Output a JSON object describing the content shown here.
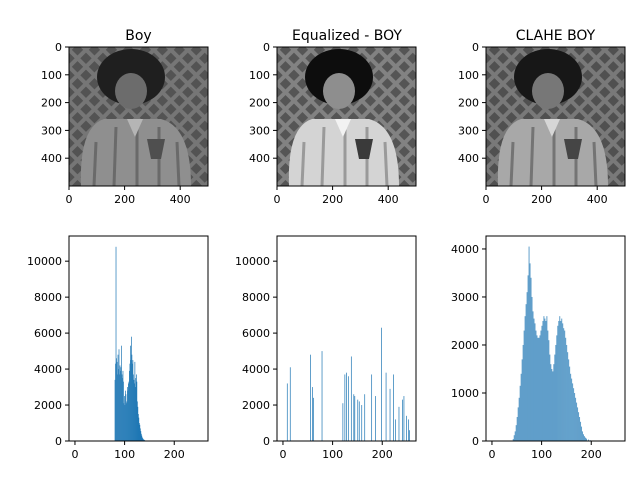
{
  "colors": {
    "bar": "#1f77b4",
    "axis": "#000000",
    "background": "#ffffff"
  },
  "chart_data": [
    {
      "type": "image",
      "title": "Boy",
      "image_variant": "original-low-contrast-grayscale",
      "xticks": [
        "0",
        "200",
        "400"
      ],
      "yticks": [
        "0",
        "100",
        "200",
        "300",
        "400"
      ],
      "xlim": [
        0,
        500
      ],
      "ylim": [
        500,
        0
      ],
      "image_size": [
        500,
        500
      ]
    },
    {
      "type": "image",
      "title": "Equalized - BOY",
      "image_variant": "histogram-equalized-grayscale",
      "xticks": [
        "0",
        "200",
        "400"
      ],
      "yticks": [
        "0",
        "100",
        "200",
        "300",
        "400"
      ],
      "xlim": [
        0,
        500
      ],
      "ylim": [
        500,
        0
      ],
      "image_size": [
        500,
        500
      ]
    },
    {
      "type": "image",
      "title": "CLAHE BOY",
      "image_variant": "clahe-grayscale",
      "xticks": [
        "0",
        "200",
        "400"
      ],
      "yticks": [
        "0",
        "100",
        "200",
        "300",
        "400"
      ],
      "xlim": [
        0,
        500
      ],
      "ylim": [
        500,
        0
      ],
      "image_size": [
        500,
        500
      ]
    },
    {
      "type": "bar",
      "title": "",
      "xlabel": "",
      "ylabel": "",
      "xlim": [
        -12,
        268
      ],
      "ylim": [
        0,
        11400
      ],
      "xticks": [
        0,
        100,
        200
      ],
      "yticks": [
        0,
        2000,
        4000,
        6000,
        8000,
        10000
      ],
      "bins": [
        [
          80,
          3400
        ],
        [
          81,
          4300
        ],
        [
          82,
          10800
        ],
        [
          83,
          4600
        ],
        [
          84,
          4400
        ],
        [
          85,
          3700
        ],
        [
          86,
          4800
        ],
        [
          87,
          4000
        ],
        [
          88,
          5100
        ],
        [
          89,
          3700
        ],
        [
          90,
          4200
        ],
        [
          91,
          3900
        ],
        [
          92,
          4100
        ],
        [
          93,
          5300
        ],
        [
          94,
          3700
        ],
        [
          95,
          3500
        ],
        [
          96,
          3900
        ],
        [
          97,
          3300
        ],
        [
          98,
          2100
        ],
        [
          99,
          2500
        ],
        [
          100,
          2000
        ],
        [
          101,
          2800
        ],
        [
          102,
          2600
        ],
        [
          103,
          2100
        ],
        [
          104,
          2200
        ],
        [
          105,
          3000
        ],
        [
          106,
          2800
        ],
        [
          107,
          3200
        ],
        [
          108,
          3300
        ],
        [
          109,
          3900
        ],
        [
          110,
          4300
        ],
        [
          111,
          5300
        ],
        [
          112,
          4500
        ],
        [
          113,
          5800
        ],
        [
          114,
          4800
        ],
        [
          115,
          4300
        ],
        [
          116,
          4500
        ],
        [
          117,
          3700
        ],
        [
          118,
          3400
        ],
        [
          119,
          3200
        ],
        [
          120,
          4400
        ],
        [
          121,
          3000
        ],
        [
          122,
          3500
        ],
        [
          123,
          3700
        ],
        [
          124,
          3300
        ],
        [
          125,
          2200
        ],
        [
          126,
          1900
        ],
        [
          127,
          1500
        ],
        [
          128,
          1300
        ],
        [
          129,
          1000
        ],
        [
          130,
          900
        ],
        [
          131,
          700
        ],
        [
          132,
          550
        ],
        [
          133,
          400
        ],
        [
          134,
          300
        ],
        [
          135,
          200
        ],
        [
          136,
          150
        ],
        [
          137,
          100
        ],
        [
          138,
          80
        ],
        [
          139,
          60
        ],
        [
          140,
          40
        ],
        [
          142,
          20
        ],
        [
          145,
          10
        ]
      ]
    },
    {
      "type": "bar",
      "title": "",
      "xlabel": "",
      "ylabel": "",
      "xlim": [
        -12,
        268
      ],
      "ylim": [
        0,
        11400
      ],
      "xticks": [
        0,
        100,
        200
      ],
      "yticks": [
        0,
        2000,
        4000,
        6000,
        8000,
        10000
      ],
      "bins": [
        [
          8,
          3200
        ],
        [
          14,
          4100
        ],
        [
          55,
          4800
        ],
        [
          59,
          3000
        ],
        [
          61,
          2400
        ],
        [
          78,
          5000
        ],
        [
          120,
          2100
        ],
        [
          124,
          3700
        ],
        [
          127,
          3800
        ],
        [
          131,
          3600
        ],
        [
          137,
          4700
        ],
        [
          142,
          2600
        ],
        [
          144,
          2500
        ],
        [
          150,
          2300
        ],
        [
          153,
          2200
        ],
        [
          158,
          2000
        ],
        [
          164,
          2600
        ],
        [
          178,
          3700
        ],
        [
          186,
          2500
        ],
        [
          198,
          6300
        ],
        [
          207,
          3800
        ],
        [
          215,
          2900
        ],
        [
          222,
          3700
        ],
        [
          226,
          1200
        ],
        [
          233,
          1900
        ],
        [
          240,
          2300
        ],
        [
          243,
          2500
        ],
        [
          248,
          1400
        ],
        [
          252,
          1200
        ],
        [
          254,
          600
        ]
      ]
    },
    {
      "type": "bar",
      "title": "",
      "xlabel": "",
      "ylabel": "",
      "xlim": [
        -12,
        268
      ],
      "ylim": [
        0,
        4270
      ],
      "xticks": [
        0,
        100,
        200
      ],
      "yticks": [
        0,
        1000,
        2000,
        3000,
        4000
      ],
      "bins": [
        [
          42,
          40
        ],
        [
          44,
          120
        ],
        [
          46,
          200
        ],
        [
          48,
          330
        ],
        [
          50,
          500
        ],
        [
          52,
          700
        ],
        [
          54,
          900
        ],
        [
          56,
          1150
        ],
        [
          58,
          1400
        ],
        [
          60,
          1700
        ],
        [
          62,
          2000
        ],
        [
          64,
          2300
        ],
        [
          66,
          2600
        ],
        [
          68,
          2850
        ],
        [
          70,
          3100
        ],
        [
          72,
          3450
        ],
        [
          74,
          4050
        ],
        [
          76,
          3700
        ],
        [
          78,
          3400
        ],
        [
          80,
          3000
        ],
        [
          82,
          2700
        ],
        [
          84,
          2550
        ],
        [
          86,
          2450
        ],
        [
          88,
          2300
        ],
        [
          90,
          2200
        ],
        [
          92,
          2150
        ],
        [
          94,
          2150
        ],
        [
          96,
          2200
        ],
        [
          98,
          2300
        ],
        [
          100,
          2400
        ],
        [
          102,
          2500
        ],
        [
          104,
          2600
        ],
        [
          106,
          2550
        ],
        [
          108,
          2500
        ],
        [
          110,
          2600
        ],
        [
          112,
          2300
        ],
        [
          114,
          2100
        ],
        [
          116,
          1800
        ],
        [
          118,
          1600
        ],
        [
          120,
          1500
        ],
        [
          122,
          1450
        ],
        [
          124,
          1600
        ],
        [
          126,
          1800
        ],
        [
          128,
          2000
        ],
        [
          130,
          2200
        ],
        [
          132,
          2400
        ],
        [
          134,
          2500
        ],
        [
          136,
          2600
        ],
        [
          138,
          2500
        ],
        [
          140,
          2550
        ],
        [
          142,
          2450
        ],
        [
          144,
          2350
        ],
        [
          146,
          2300
        ],
        [
          148,
          2150
        ],
        [
          150,
          2000
        ],
        [
          152,
          1850
        ],
        [
          154,
          1700
        ],
        [
          156,
          1550
        ],
        [
          158,
          1400
        ],
        [
          160,
          1300
        ],
        [
          162,
          1200
        ],
        [
          164,
          1100
        ],
        [
          166,
          1000
        ],
        [
          168,
          900
        ],
        [
          170,
          800
        ],
        [
          172,
          700
        ],
        [
          174,
          600
        ],
        [
          176,
          500
        ],
        [
          178,
          400
        ],
        [
          180,
          300
        ],
        [
          182,
          200
        ],
        [
          184,
          140
        ],
        [
          186,
          100
        ],
        [
          188,
          70
        ],
        [
          190,
          50
        ],
        [
          194,
          30
        ],
        [
          198,
          15
        ],
        [
          204,
          8
        ]
      ]
    }
  ]
}
